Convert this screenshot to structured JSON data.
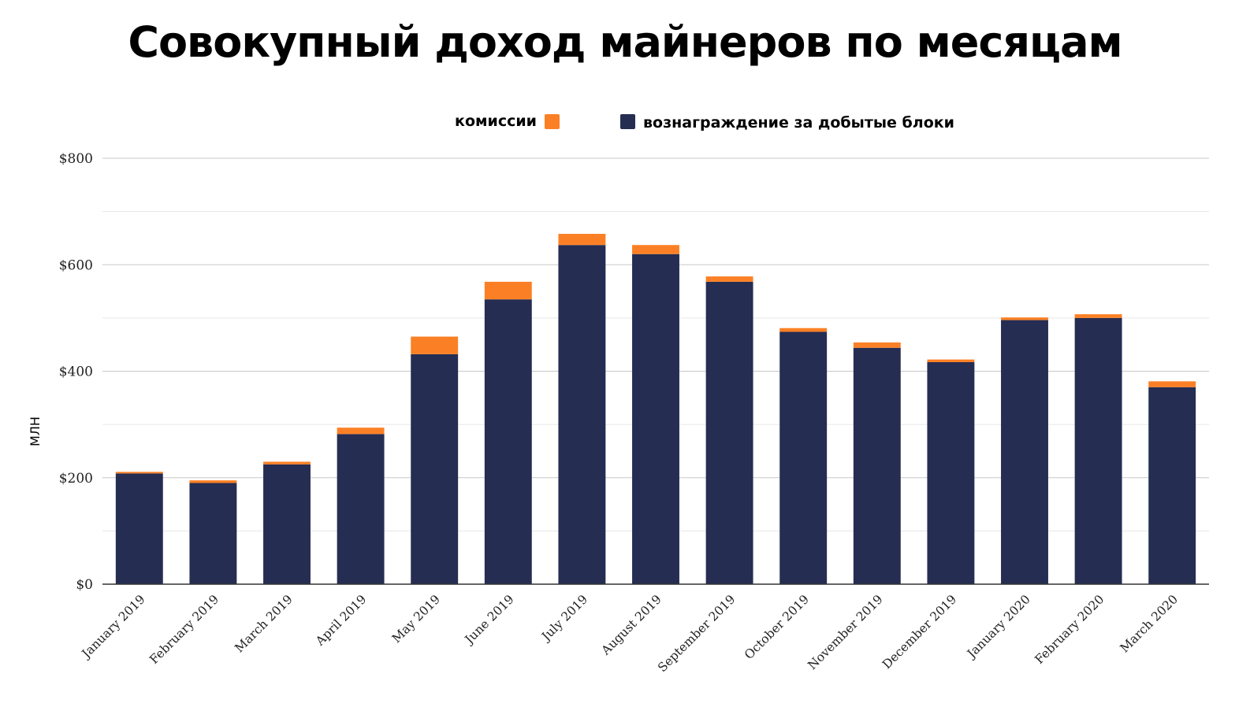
{
  "chart_data": {
    "type": "bar",
    "stacked": true,
    "title": "Совокупный доход майнеров по месяцам",
    "ylabel": "МЛН",
    "xlabel": "",
    "ylim": [
      0,
      800
    ],
    "yticks": [
      {
        "value": 0,
        "label": "$0"
      },
      {
        "value": 200,
        "label": "$200"
      },
      {
        "value": 400,
        "label": "$400"
      },
      {
        "value": 600,
        "label": "$600"
      },
      {
        "value": 800,
        "label": "$800"
      }
    ],
    "grid": true,
    "legend_position": "top-center",
    "categories": [
      "January 2019",
      "February 2019",
      "March 2019",
      "April 2019",
      "May 2019",
      "June 2019",
      "July 2019",
      "August 2019",
      "September 2019",
      "October 2019",
      "November 2019",
      "December 2019",
      "January 2020",
      "February 2020",
      "March 2020"
    ],
    "series": [
      {
        "name": "вознаграждение за добытые блоки",
        "color": "#252d52",
        "values": [
          208,
          190,
          225,
          282,
          432,
          535,
          637,
          620,
          568,
          474,
          444,
          417,
          496,
          500,
          370
        ]
      },
      {
        "name": "комиссии",
        "color": "#fb8025",
        "values": [
          3,
          5,
          5,
          12,
          33,
          33,
          21,
          17,
          10,
          7,
          10,
          5,
          5,
          7,
          11
        ]
      }
    ]
  }
}
